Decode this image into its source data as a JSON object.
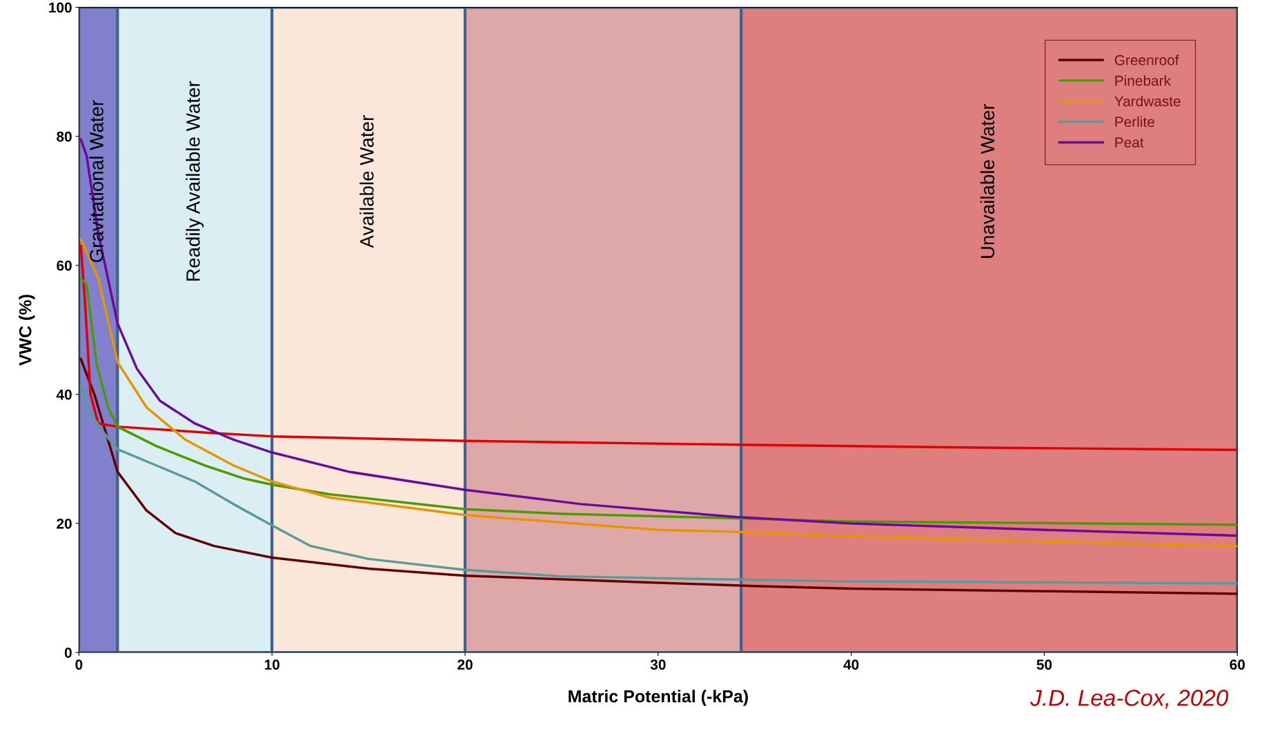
{
  "chart_data": {
    "type": "line",
    "xlabel": "Matric Potential (-kPa)",
    "ylabel": "VWC (%)",
    "xlim": [
      0,
      60
    ],
    "ylim": [
      0,
      100
    ],
    "xticks": [
      0,
      10,
      20,
      30,
      40,
      50,
      60
    ],
    "yticks": [
      0,
      20,
      40,
      60,
      80,
      100
    ],
    "grid": false,
    "legend": "top right",
    "marker": "none",
    "line_style": "solid",
    "bands": [
      {
        "axis": "x",
        "from": 0,
        "to": 2,
        "label": "Gravitational Water",
        "color": "#8080cc"
      },
      {
        "axis": "x",
        "from": 2,
        "to": 10,
        "label": "Readily Available Water",
        "color": "#dbeef4"
      },
      {
        "axis": "x",
        "from": 10,
        "to": 20,
        "label": "Available Water",
        "color": "#fbe7d9"
      },
      {
        "axis": "x",
        "from": 20,
        "to": 34.3,
        "label": null,
        "color": "#dfa8a8"
      },
      {
        "axis": "x",
        "from": 34.3,
        "to": 60,
        "label": "Unavailable Water",
        "color": "#df7e7e"
      }
    ],
    "series": [
      {
        "name": "Greenroof",
        "color": "#600000",
        "x": [
          0.1,
          0.8,
          1.3,
          2,
          3.5,
          5,
          7,
          10,
          15,
          20,
          30,
          35,
          40,
          50,
          60
        ],
        "values": [
          45.5,
          40,
          35,
          28,
          22,
          18.5,
          16.5,
          14.7,
          13,
          11.9,
          10.8,
          10.3,
          9.9,
          9.5,
          9.1
        ]
      },
      {
        "color": "#e00000",
        "x": [
          0.1,
          0.3,
          0.6,
          1,
          2,
          7,
          10,
          20,
          34,
          45,
          60
        ],
        "values": [
          63,
          55,
          40,
          35.5,
          35,
          34,
          33.5,
          32.8,
          32.2,
          31.8,
          31.4
        ]
      },
      {
        "name": "Pinebark",
        "color": "#4c9a00",
        "x": [
          0.1,
          0.4,
          0.9,
          1.5,
          2,
          4,
          6.5,
          8.5,
          10,
          13,
          20,
          25,
          34,
          40,
          60
        ],
        "values": [
          58,
          57,
          45,
          38,
          35,
          32,
          29,
          27,
          26,
          24.5,
          22.2,
          21.5,
          20.8,
          20.3,
          19.8
        ]
      },
      {
        "name": "Yardwaste",
        "color": "#e69500",
        "x": [
          0.1,
          1,
          2,
          3.5,
          5.5,
          8,
          10,
          13,
          20,
          30,
          34,
          40,
          50,
          60
        ],
        "values": [
          64,
          58,
          45,
          38,
          33,
          29,
          26.5,
          24,
          21.3,
          19,
          18.7,
          18,
          17.2,
          16.5
        ]
      },
      {
        "name": "Perlite",
        "color": "#5a9a9a",
        "x": [
          0.1,
          0.5,
          1.3,
          2,
          4,
          6,
          8,
          10,
          12,
          15,
          20,
          25,
          34,
          40,
          60
        ],
        "values": [
          41.5,
          37.5,
          34,
          31.5,
          29,
          26.5,
          23,
          19.7,
          16.5,
          14.5,
          12.8,
          11.8,
          11.3,
          11,
          10.7
        ]
      },
      {
        "name": "Peat",
        "color": "#6a0a9a",
        "x": [
          0.1,
          0.4,
          1,
          1.5,
          2,
          3,
          4.2,
          6,
          8,
          10,
          14,
          20,
          26,
          34,
          40,
          50,
          60
        ],
        "values": [
          79.5,
          77,
          65,
          58,
          51,
          44,
          39,
          35.5,
          33,
          31,
          28,
          25.2,
          23,
          21,
          20,
          19,
          18.1
        ]
      }
    ],
    "annotations": [
      "J.D. Lea-Cox, 2020"
    ]
  }
}
